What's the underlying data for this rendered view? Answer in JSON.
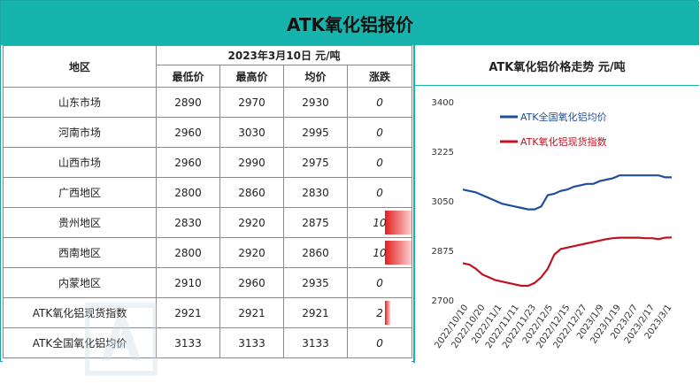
{
  "title": "ATK氧化铝报价",
  "table": {
    "region_header": "地区",
    "date_header": "2023年3月10日  元/吨",
    "columns": [
      "最低价",
      "最高价",
      "均价",
      "涨跌"
    ],
    "rows": [
      {
        "region": "山东市场",
        "low": "2890",
        "high": "2970",
        "avg": "2930",
        "change": "0",
        "change_value": 0
      },
      {
        "region": "河南市场",
        "low": "2960",
        "high": "3030",
        "avg": "2995",
        "change": "0",
        "change_value": 0
      },
      {
        "region": "山西市场",
        "low": "2960",
        "high": "2990",
        "avg": "2975",
        "change": "0",
        "change_value": 0
      },
      {
        "region": "广西地区",
        "low": "2800",
        "high": "2860",
        "avg": "2830",
        "change": "0",
        "change_value": 0
      },
      {
        "region": "贵州地区",
        "low": "2830",
        "high": "2920",
        "avg": "2875",
        "change": "10",
        "change_value": 10
      },
      {
        "region": "西南地区",
        "low": "2800",
        "high": "2920",
        "avg": "2860",
        "change": "10",
        "change_value": 10
      },
      {
        "region": "内蒙地区",
        "low": "2910",
        "high": "2960",
        "avg": "2935",
        "change": "0",
        "change_value": 0
      },
      {
        "region": "ATK氧化铝现货指数",
        "low": "2921",
        "high": "2921",
        "avg": "2921",
        "change": "2",
        "change_value": 2
      },
      {
        "region": "ATK全国氧化铝均价",
        "low": "3133",
        "high": "3133",
        "avg": "3133",
        "change": "0",
        "change_value": 0
      }
    ]
  },
  "chart_data": {
    "type": "line",
    "title": "ATK氧化铝价格走势  元/吨",
    "ylim": [
      2700,
      3400
    ],
    "yticks": [
      "3400",
      "3225",
      "3050",
      "2875",
      "2700"
    ],
    "xticks": [
      "2022/10/10",
      "2022/10/20",
      "2022/11/1",
      "2022/11/11",
      "2022/11/23",
      "2022/12/5",
      "2022/12/15",
      "2022/12/27",
      "2023/1/9",
      "2023/1/19",
      "2023/2/7",
      "2023/2/17",
      "2023/3/1"
    ],
    "grid": false,
    "legend_position": "top-center",
    "series": [
      {
        "name": "ATK全国氧化铝均价",
        "color": "#1f4e9a",
        "values": [
          3090,
          3085,
          3080,
          3070,
          3060,
          3050,
          3040,
          3035,
          3030,
          3025,
          3020,
          3020,
          3030,
          3070,
          3075,
          3085,
          3090,
          3100,
          3105,
          3110,
          3110,
          3120,
          3125,
          3130,
          3140,
          3140,
          3140,
          3140,
          3140,
          3140,
          3140,
          3133,
          3133
        ]
      },
      {
        "name": "ATK氧化铝现货指数",
        "color": "#c0121f",
        "values": [
          2830,
          2825,
          2810,
          2790,
          2780,
          2770,
          2765,
          2760,
          2755,
          2750,
          2750,
          2760,
          2780,
          2810,
          2860,
          2880,
          2885,
          2890,
          2895,
          2900,
          2905,
          2910,
          2915,
          2918,
          2920,
          2920,
          2920,
          2920,
          2918,
          2918,
          2915,
          2920,
          2921
        ]
      }
    ]
  }
}
